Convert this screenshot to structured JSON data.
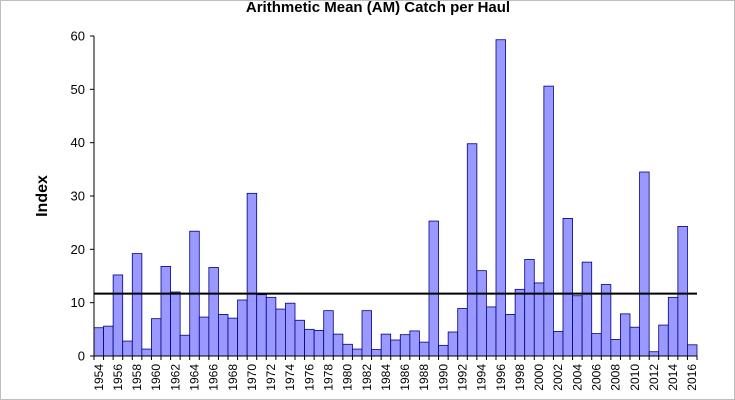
{
  "chart_data": {
    "type": "bar",
    "title": "Arithmetic Mean (AM) Catch per Haul",
    "xlabel": "",
    "ylabel": "Index",
    "ylim": [
      0,
      60
    ],
    "yticks": [
      "0",
      "10",
      "20",
      "30",
      "40",
      "50",
      "60"
    ],
    "grid": false,
    "legend": "none",
    "reference_line": {
      "value": 11.7,
      "color": "#000000"
    },
    "colors": {
      "bar_fill": "#9999ff",
      "bar_edge": "#000080"
    },
    "x_tick_labels": [
      "1954",
      "1956",
      "1958",
      "1960",
      "1962",
      "1964",
      "1966",
      "1968",
      "1970",
      "1972",
      "1974",
      "1976",
      "1978",
      "1980",
      "1982",
      "1984",
      "1986",
      "1988",
      "1990",
      "1992",
      "1994",
      "1996",
      "1998",
      "2000",
      "2002",
      "2004",
      "2006",
      "2008",
      "2010",
      "2012",
      "2014",
      "2016"
    ],
    "categories": [
      1954,
      1955,
      1956,
      1957,
      1958,
      1959,
      1960,
      1961,
      1962,
      1963,
      1964,
      1965,
      1966,
      1967,
      1968,
      1969,
      1970,
      1971,
      1972,
      1973,
      1974,
      1975,
      1976,
      1977,
      1978,
      1979,
      1980,
      1981,
      1982,
      1983,
      1984,
      1985,
      1986,
      1987,
      1988,
      1989,
      1990,
      1991,
      1992,
      1993,
      1994,
      1995,
      1996,
      1997,
      1998,
      1999,
      2000,
      2001,
      2002,
      2003,
      2004,
      2005,
      2006,
      2007,
      2008,
      2009,
      2010,
      2011,
      2012,
      2013,
      2014,
      2015,
      2016
    ],
    "values": [
      5.3,
      5.6,
      15.2,
      2.8,
      19.2,
      1.3,
      7.0,
      16.8,
      12.0,
      3.9,
      23.4,
      7.3,
      16.6,
      7.8,
      7.1,
      10.5,
      30.5,
      11.5,
      11.0,
      8.8,
      9.9,
      6.7,
      5.0,
      4.8,
      8.5,
      4.1,
      2.2,
      1.3,
      8.5,
      1.2,
      4.1,
      3.0,
      4.0,
      4.7,
      2.6,
      25.3,
      2.0,
      4.5,
      8.9,
      39.8,
      16.0,
      9.2,
      59.3,
      7.8,
      12.5,
      18.1,
      13.7,
      50.6,
      4.6,
      25.8,
      11.3,
      17.6,
      4.2,
      13.4,
      3.1,
      7.9,
      5.4,
      34.5,
      0.8,
      5.8,
      11.0,
      24.3,
      2.1
    ]
  }
}
